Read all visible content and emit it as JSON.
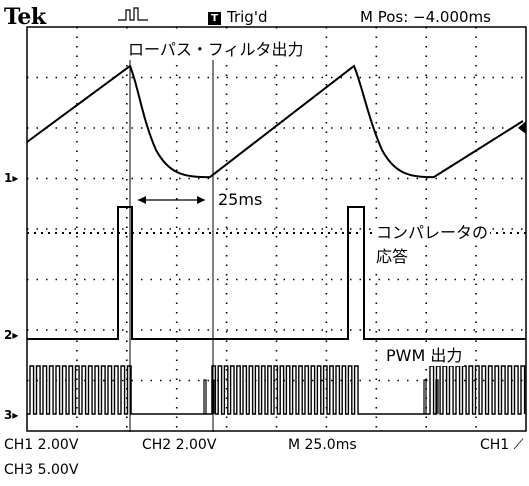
{
  "header": {
    "brand": "Tek",
    "trigger_status": "Trig'd",
    "trigger_icon": "T",
    "position": "M Pos: −4.000ms"
  },
  "annotations": {
    "lowpass": "ローパス・フィルタ出力",
    "interval": "25ms",
    "comparator_line1": "コンパレータの",
    "comparator_line2": "応答",
    "pwm": "PWM 出力"
  },
  "channel_markers": {
    "ch1": "1",
    "ch2": "2",
    "ch3": "3"
  },
  "footer": {
    "ch1_scale": "CH1  2.00V",
    "ch2_scale": "CH2  2.00V",
    "timebase": "M 25.0ms",
    "trigger_source": "CH1",
    "ch3_scale": "CH3  5.00V"
  },
  "colors": {
    "trace": "#000000",
    "graticule": "#000000",
    "background": "#ffffff"
  }
}
